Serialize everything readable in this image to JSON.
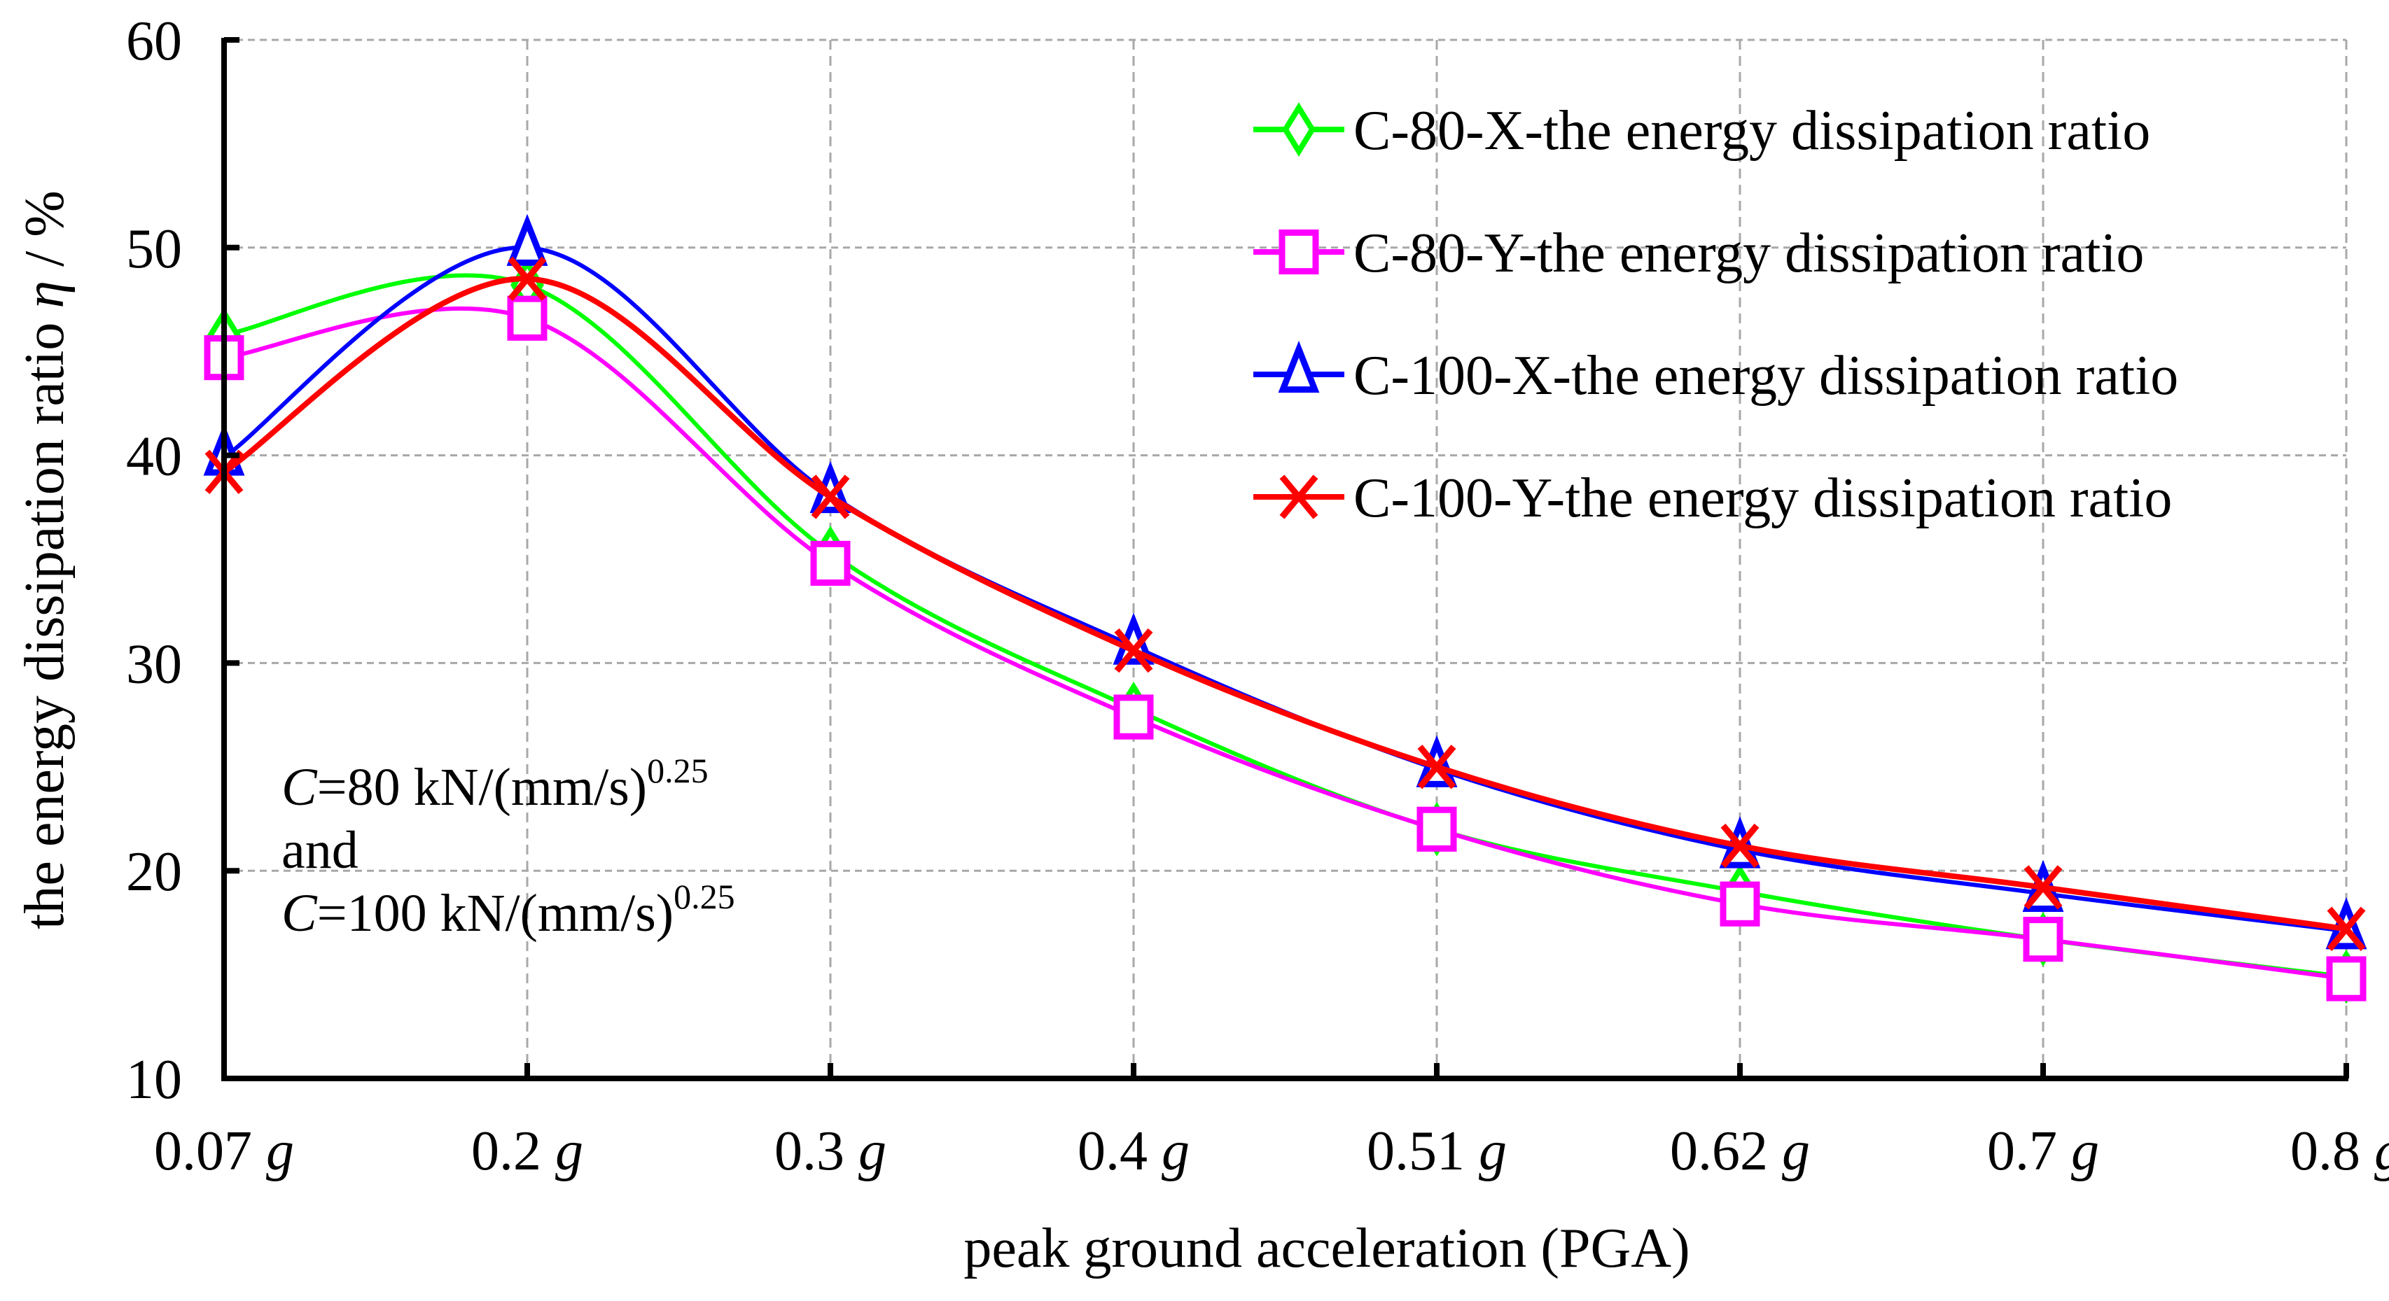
{
  "chart_data": {
    "type": "line",
    "title": "",
    "xlabel": "peak ground acceleration (PGA)",
    "ylabel_prefix": "the energy dissipation ratio ",
    "ylabel_symbol": "η",
    "ylabel_suffix": " / %",
    "categories": [
      "0.07",
      "0.2",
      "0.3",
      "0.4",
      "0.51",
      "0.62",
      "0.7",
      "0.8"
    ],
    "category_unit": "g",
    "ylim": [
      10,
      60
    ],
    "yticks": [
      10,
      20,
      30,
      40,
      50,
      60
    ],
    "grid": true,
    "legend_position": "top-right",
    "series": [
      {
        "name": "C-80-X-the energy dissipation ratio",
        "color": "#00ff00",
        "marker": "diamond",
        "values": [
          45.8,
          48.2,
          35.3,
          27.8,
          22.0,
          19.0,
          16.7,
          14.9
        ]
      },
      {
        "name": "C-80-Y-the energy dissipation ratio",
        "color": "#ff00ff",
        "marker": "square",
        "values": [
          44.7,
          46.6,
          34.8,
          27.4,
          22.0,
          18.4,
          16.7,
          14.8
        ]
      },
      {
        "name": "C-100-X-the energy dissipation ratio",
        "color": "#0000ff",
        "marker": "triangle",
        "values": [
          39.9,
          50.0,
          38.1,
          30.8,
          24.9,
          21.0,
          18.9,
          17.1
        ]
      },
      {
        "name": "C-100-Y-the energy dissipation ratio",
        "color": "#ff0000",
        "marker": "x",
        "values": [
          39.2,
          48.5,
          38.0,
          30.6,
          25.0,
          21.2,
          19.2,
          17.2
        ]
      }
    ],
    "annotations": [
      {
        "prefix": "C",
        "text": "=80 kN/(mm/s)",
        "sup": "0.25"
      },
      {
        "text": "and"
      },
      {
        "prefix": "C",
        "text": "=100 kN/(mm/s)",
        "sup": "0.25"
      }
    ]
  }
}
